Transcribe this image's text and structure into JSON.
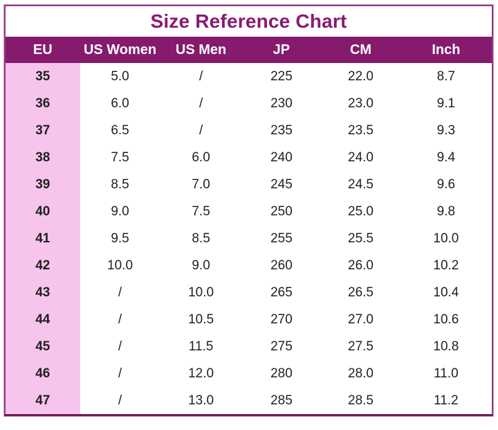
{
  "title": "Size Reference Chart",
  "colors": {
    "title_text": "#8A1A70",
    "header_bg": "#861B6D",
    "header_text": "#FFFFFF",
    "eu_column_bg": "#F7C5EC",
    "body_text": "#212121",
    "frame_border": "#8D3B80",
    "frame_border_bottom": "#6D1A57",
    "frame_halo": "#D2A0CA"
  },
  "chart_data": {
    "type": "table",
    "title": "Size Reference Chart",
    "columns": [
      "EU",
      "US Women",
      "US Men",
      "JP",
      "CM",
      "Inch"
    ],
    "rows": [
      [
        "35",
        "5.0",
        "/",
        "225",
        "22.0",
        "8.7"
      ],
      [
        "36",
        "6.0",
        "/",
        "230",
        "23.0",
        "9.1"
      ],
      [
        "37",
        "6.5",
        "/",
        "235",
        "23.5",
        "9.3"
      ],
      [
        "38",
        "7.5",
        "6.0",
        "240",
        "24.0",
        "9.4"
      ],
      [
        "39",
        "8.5",
        "7.0",
        "245",
        "24.5",
        "9.6"
      ],
      [
        "40",
        "9.0",
        "7.5",
        "250",
        "25.0",
        "9.8"
      ],
      [
        "41",
        "9.5",
        "8.5",
        "255",
        "25.5",
        "10.0"
      ],
      [
        "42",
        "10.0",
        "9.0",
        "260",
        "26.0",
        "10.2"
      ],
      [
        "43",
        "/",
        "10.0",
        "265",
        "26.5",
        "10.4"
      ],
      [
        "44",
        "/",
        "10.5",
        "270",
        "27.0",
        "10.6"
      ],
      [
        "45",
        "/",
        "11.5",
        "275",
        "27.5",
        "10.8"
      ],
      [
        "46",
        "/",
        "12.0",
        "280",
        "28.0",
        "11.0"
      ],
      [
        "47",
        "/",
        "13.0",
        "285",
        "28.5",
        "11.2"
      ]
    ]
  }
}
